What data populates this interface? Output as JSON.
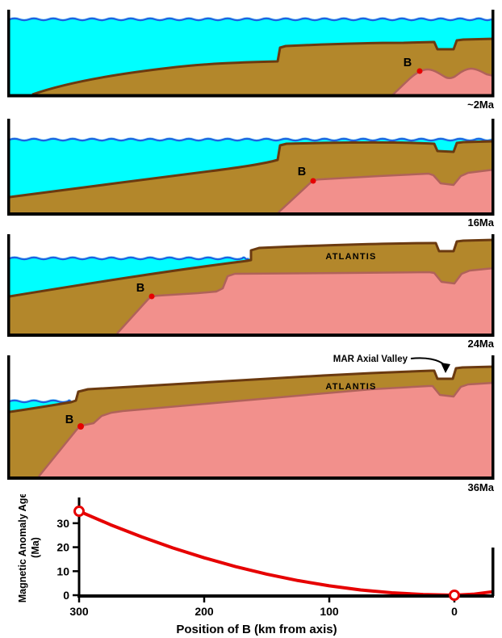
{
  "figure": {
    "panels": [
      {
        "id": "2ma",
        "age_label": "~2Ma",
        "point_label": "B"
      },
      {
        "id": "16ma",
        "age_label": "16Ma",
        "point_label": "B"
      },
      {
        "id": "24ma",
        "age_label": "24Ma",
        "point_label": "B",
        "region_label": "ATLANTIS"
      },
      {
        "id": "36ma",
        "age_label": "36Ma",
        "point_label": "B",
        "region_label": "ATLANTIS",
        "annotation": "MAR Axial Valley"
      }
    ]
  },
  "colors": {
    "water": "#00FFFF",
    "wave": "#1E5FE0",
    "wave_highlight": "#A8E4F8",
    "crust": "#B3872B",
    "crust_outline": "#6B3A10",
    "magnetized_crust": "#F2908C",
    "magnetized_outline": "#B0625A",
    "marker": "#E60000",
    "curve": "#E60000",
    "frame": "#000000"
  },
  "chart_data": {
    "type": "line",
    "xlabel": "Position of B (km from axis)",
    "ylabel_lines": [
      "Magnetic Anomaly Age",
      "(Ma)"
    ],
    "xticks": [
      300,
      200,
      100,
      0
    ],
    "yticks": [
      0,
      10,
      20,
      30
    ],
    "x_axis_reversed": true,
    "xlim": [
      300,
      -30
    ],
    "ylim": [
      0,
      38
    ],
    "grid": false,
    "series": [
      {
        "name": "age-of-B-vs-distance",
        "x": [
          300,
          275,
          250,
          225,
          200,
          175,
          150,
          125,
          100,
          75,
          50,
          25,
          0
        ],
        "y": [
          35,
          29.4,
          24.3,
          19.7,
          15.6,
          11.9,
          8.8,
          6.1,
          3.9,
          2.2,
          1.0,
          0.3,
          0
        ]
      }
    ],
    "extension_beyond_axis": {
      "x": [
        0,
        -15,
        -30
      ],
      "y": [
        0,
        0.4,
        1.4
      ]
    },
    "endpoints_open_circles": [
      [
        300,
        35
      ],
      [
        0,
        0
      ]
    ]
  }
}
